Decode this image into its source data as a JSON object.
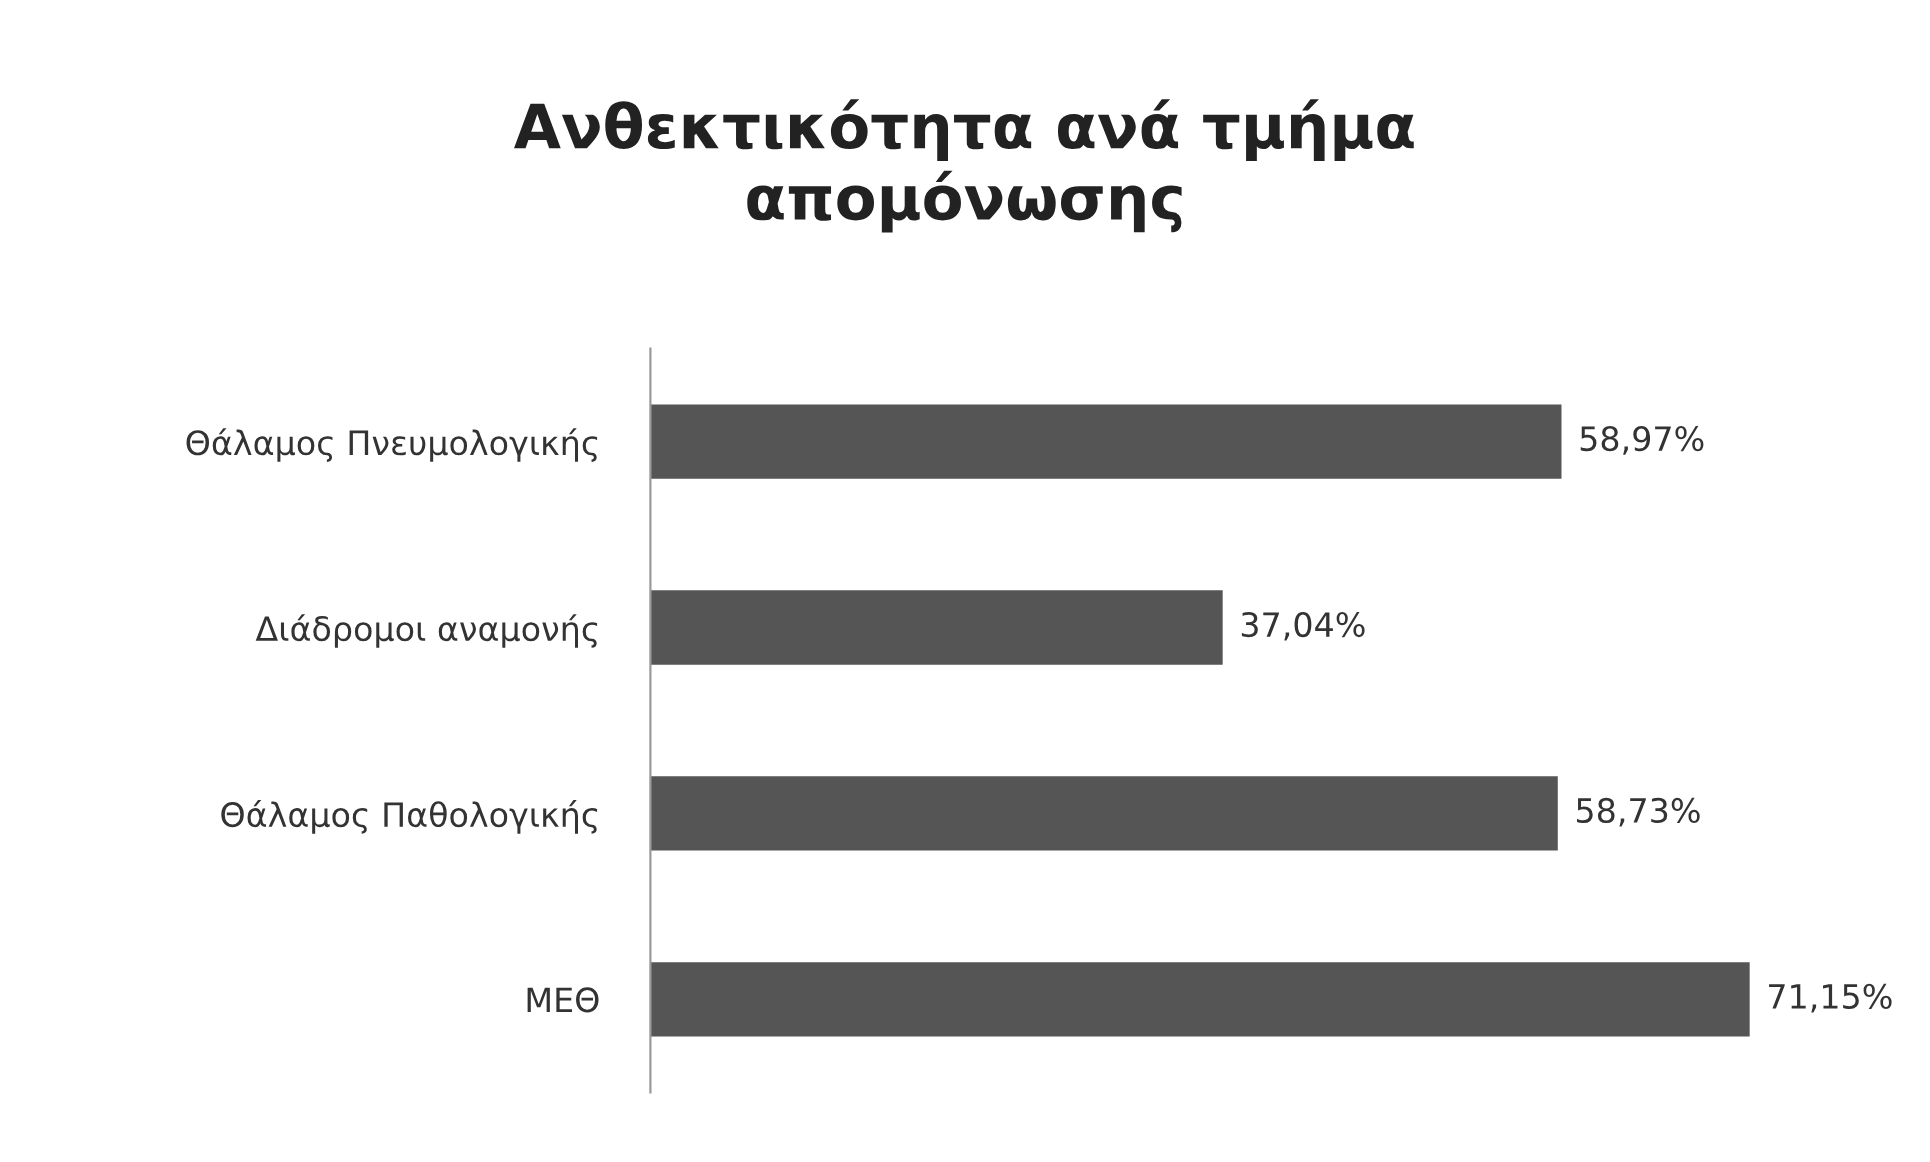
{
  "chart_data": {
    "type": "bar",
    "orientation": "horizontal",
    "title": "Ανθεκτικότητα ανά τμήμα\nαπομόνωσης",
    "categories": [
      "Θάλαμος Πνευμολογικής",
      "Διάδρομοι αναμονής",
      "Θάλαμος Παθολογικής",
      "ΜΕΘ"
    ],
    "values": [
      58.97,
      37.04,
      58.73,
      71.15
    ],
    "value_labels": [
      "58,97%",
      "37,04%",
      "58,73%",
      "71,15%"
    ],
    "color": "#555555",
    "grid": false,
    "legend": false
  }
}
